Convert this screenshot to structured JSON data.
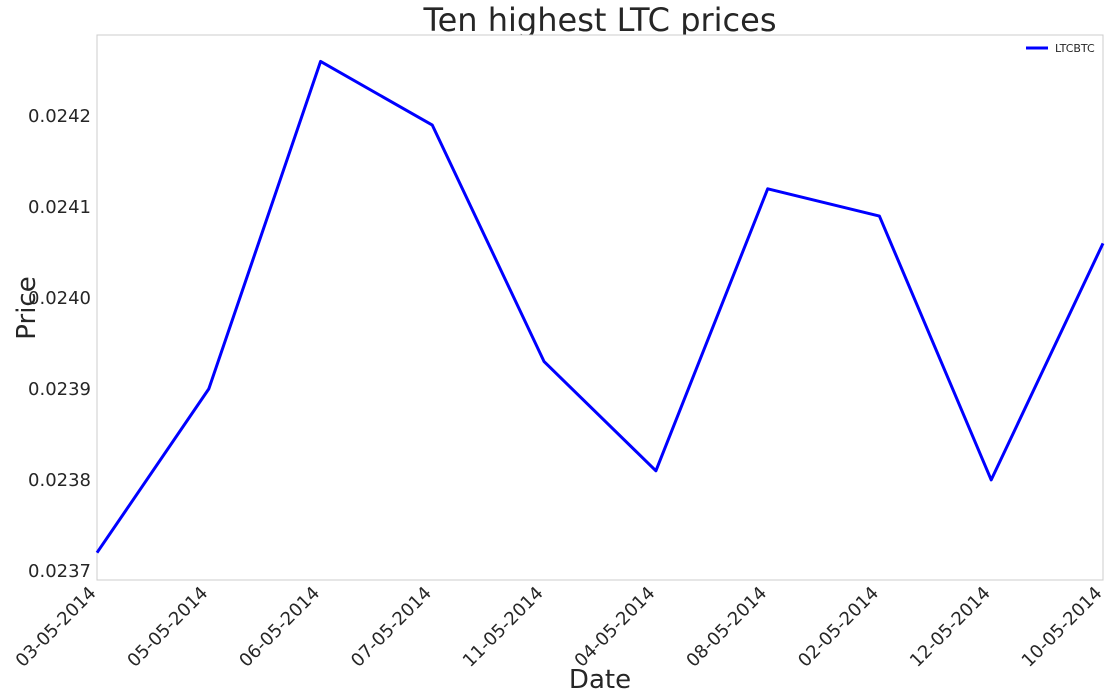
{
  "chart_data": {
    "type": "line",
    "title": "Ten highest LTC prices",
    "xlabel": "Date",
    "ylabel": "Price",
    "categories": [
      "03-05-2014",
      "05-05-2014",
      "06-05-2014",
      "07-05-2014",
      "11-05-2014",
      "04-05-2014",
      "08-05-2014",
      "02-05-2014",
      "12-05-2014",
      "10-05-2014"
    ],
    "series": [
      {
        "name": "LTCBTC",
        "color": "#0000ff",
        "values": [
          0.02372,
          0.0239,
          0.02426,
          0.02419,
          0.02393,
          0.02381,
          0.02412,
          0.02409,
          0.0238,
          0.02406
        ]
      }
    ],
    "yticks": [
      "0.0237",
      "0.0238",
      "0.0239",
      "0.0240",
      "0.0241",
      "0.0242"
    ],
    "ylim": [
      0.02369,
      0.024289
    ],
    "grid": false,
    "legend_position": "top-right"
  }
}
